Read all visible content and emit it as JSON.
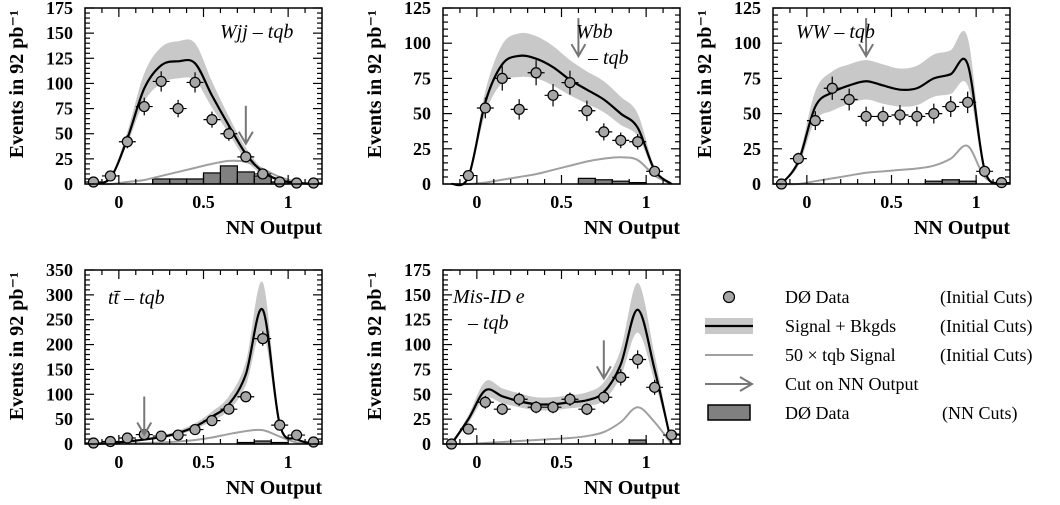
{
  "legend": {
    "items": [
      {
        "label": "DØ Data",
        "cuts": "(Initial Cuts)",
        "icon": "data-point-icon"
      },
      {
        "label": "Signal + Bkgds",
        "cuts": "(Initial Cuts)",
        "icon": "band-line-icon"
      },
      {
        "label": "50 × tqb Signal",
        "cuts": "(Initial Cuts)",
        "icon": "gray-line-icon"
      },
      {
        "label": "Cut on NN Output",
        "cuts": "",
        "icon": "arrow-icon"
      },
      {
        "label": "DØ Data",
        "cuts": "(NN Cuts)",
        "icon": "hist-box-icon"
      }
    ]
  },
  "colors": {
    "band": "#c8c8c8",
    "marker": "#a6a6a6",
    "signal": "#a0a0a0",
    "hist": "#808080",
    "arrow": "#777777"
  },
  "chart_data": [
    {
      "type": "line",
      "title": "Wjj – tqb",
      "xlabel": "NN Output",
      "ylabel": "Events in 92 pb⁻¹",
      "xlim": [
        -0.2,
        1.2
      ],
      "ylim": [
        0,
        175
      ],
      "xticks": [
        0,
        0.5,
        1
      ],
      "xtick_labels": [
        "0",
        "0.5",
        "1"
      ],
      "yticks": [
        0,
        25,
        50,
        75,
        100,
        125,
        150,
        175
      ],
      "cut": 0.75,
      "data": {
        "x": [
          -0.15,
          -0.05,
          0.05,
          0.15,
          0.25,
          0.35,
          0.45,
          0.55,
          0.65,
          0.75,
          0.85,
          0.95,
          1.05,
          1.15
        ],
        "y": [
          2,
          8,
          42,
          77,
          102,
          75,
          101,
          64,
          50,
          27,
          10,
          2,
          1,
          1
        ]
      },
      "total": {
        "x": [
          -0.15,
          -0.05,
          0.05,
          0.15,
          0.25,
          0.35,
          0.45,
          0.55,
          0.65,
          0.75,
          0.85,
          0.95,
          1.05,
          1.15
        ],
        "y": [
          1,
          6,
          45,
          95,
          118,
          122,
          120,
          88,
          58,
          30,
          12,
          4,
          1,
          0
        ]
      },
      "band": {
        "x": [
          -0.15,
          -0.05,
          0.05,
          0.15,
          0.25,
          0.35,
          0.45,
          0.55,
          0.65,
          0.75,
          0.85,
          0.95,
          1.05,
          1.15
        ],
        "low": [
          1,
          5,
          40,
          82,
          100,
          105,
          103,
          76,
          50,
          24,
          9,
          3,
          1,
          0
        ],
        "high": [
          1,
          7,
          52,
          110,
          136,
          142,
          140,
          102,
          67,
          36,
          15,
          5,
          1,
          0
        ]
      },
      "signal": {
        "x": [
          -0.15,
          -0.05,
          0.05,
          0.15,
          0.25,
          0.35,
          0.45,
          0.55,
          0.65,
          0.75,
          0.85,
          0.95,
          1.05,
          1.15
        ],
        "y": [
          0,
          0,
          2,
          4,
          8,
          12,
          16,
          20,
          23,
          22,
          15,
          7,
          2,
          0
        ]
      },
      "nncut": {
        "x": [
          0.25,
          0.35,
          0.45,
          0.55,
          0.65,
          0.75,
          0.85,
          0.95
        ],
        "y": [
          5,
          5,
          5,
          11,
          18,
          12,
          8,
          2
        ]
      }
    },
    {
      "type": "line",
      "title": "Wbb",
      "title2": "– tqb",
      "xlabel": "NN Output",
      "ylabel": "Events in 92 pb⁻¹",
      "xlim": [
        -0.2,
        1.2
      ],
      "ylim": [
        0,
        125
      ],
      "xticks": [
        0,
        0.5,
        1
      ],
      "xtick_labels": [
        "0",
        "0.5",
        "1"
      ],
      "yticks": [
        0,
        25,
        50,
        75,
        100,
        125
      ],
      "cut": 0.6,
      "data": {
        "x": [
          -0.05,
          0.05,
          0.15,
          0.25,
          0.35,
          0.45,
          0.55,
          0.65,
          0.75,
          0.85,
          0.95,
          1.05
        ],
        "y": [
          6,
          54,
          75,
          53,
          79,
          63,
          72,
          52,
          37,
          31,
          30,
          9
        ]
      },
      "total": {
        "x": [
          -0.15,
          -0.05,
          0.05,
          0.15,
          0.25,
          0.35,
          0.45,
          0.55,
          0.65,
          0.75,
          0.85,
          0.95,
          1.05,
          1.15
        ],
        "y": [
          0,
          5,
          58,
          85,
          91,
          89,
          83,
          74,
          67,
          60,
          50,
          40,
          10,
          0
        ]
      },
      "band": {
        "x": [
          -0.15,
          -0.05,
          0.05,
          0.15,
          0.25,
          0.35,
          0.45,
          0.55,
          0.65,
          0.75,
          0.85,
          0.95,
          1.05,
          1.15
        ],
        "low": [
          0,
          4,
          50,
          72,
          76,
          75,
          70,
          63,
          57,
          51,
          42,
          34,
          8,
          0
        ],
        "high": [
          0,
          6,
          66,
          99,
          107,
          105,
          98,
          88,
          80,
          73,
          62,
          50,
          12,
          0
        ]
      },
      "signal": {
        "x": [
          -0.15,
          -0.05,
          0.05,
          0.15,
          0.25,
          0.35,
          0.45,
          0.55,
          0.65,
          0.75,
          0.85,
          0.95,
          1.05,
          1.15
        ],
        "y": [
          0,
          0,
          1,
          3,
          5,
          7,
          10,
          13,
          16,
          18,
          19,
          17,
          6,
          0
        ]
      },
      "nncut": {
        "x": [
          0.65,
          0.75,
          0.85,
          0.95
        ],
        "y": [
          4,
          3,
          2,
          1
        ]
      }
    },
    {
      "type": "line",
      "title": "WW – tqb",
      "xlabel": "NN Output",
      "ylabel": "Events in 92 pb⁻¹",
      "xlim": [
        -0.2,
        1.2
      ],
      "ylim": [
        0,
        125
      ],
      "xticks": [
        0,
        0.5,
        1
      ],
      "xtick_labels": [
        "0",
        "0.5",
        "1"
      ],
      "yticks": [
        0,
        25,
        50,
        75,
        100,
        125
      ],
      "cut": 0.35,
      "data": {
        "x": [
          -0.15,
          -0.05,
          0.05,
          0.15,
          0.25,
          0.35,
          0.45,
          0.55,
          0.65,
          0.75,
          0.85,
          0.95,
          1.05,
          1.15
        ],
        "y": [
          0,
          18,
          45,
          68,
          60,
          48,
          48,
          49,
          48,
          50,
          55,
          58,
          9,
          1
        ]
      },
      "total": {
        "x": [
          -0.15,
          -0.05,
          0.05,
          0.15,
          0.25,
          0.35,
          0.45,
          0.55,
          0.65,
          0.75,
          0.85,
          0.95,
          1.05,
          1.15
        ],
        "y": [
          0,
          16,
          55,
          65,
          70,
          73,
          70,
          67,
          68,
          75,
          78,
          85,
          10,
          0
        ]
      },
      "band": {
        "x": [
          -0.15,
          -0.05,
          0.05,
          0.15,
          0.25,
          0.35,
          0.45,
          0.55,
          0.65,
          0.75,
          0.85,
          0.95,
          1.05,
          1.15
        ],
        "low": [
          0,
          13,
          45,
          52,
          57,
          60,
          57,
          55,
          56,
          62,
          64,
          70,
          8,
          0
        ],
        "high": [
          0,
          19,
          66,
          80,
          85,
          88,
          85,
          82,
          84,
          92,
          95,
          104,
          12,
          0
        ]
      },
      "signal": {
        "x": [
          -0.15,
          -0.05,
          0.05,
          0.15,
          0.25,
          0.35,
          0.45,
          0.55,
          0.65,
          0.75,
          0.85,
          0.95,
          1.05,
          1.15
        ],
        "y": [
          0,
          0,
          2,
          4,
          6,
          8,
          9,
          10,
          11,
          13,
          18,
          27,
          5,
          0
        ]
      },
      "nncut": {
        "x": [
          0.75,
          0.85,
          0.95
        ],
        "y": [
          2,
          3,
          2
        ]
      }
    },
    {
      "type": "line",
      "title": "tt̄ – tqb",
      "xlabel": "NN Output",
      "ylabel": "Events in 92 pb⁻¹",
      "xlim": [
        -0.2,
        1.2
      ],
      "ylim": [
        0,
        350
      ],
      "xticks": [
        0,
        0.5,
        1
      ],
      "xtick_labels": [
        "0",
        "0.5",
        "1"
      ],
      "yticks": [
        0,
        50,
        100,
        150,
        200,
        250,
        300,
        350
      ],
      "cut": 0.15,
      "data": {
        "x": [
          -0.15,
          -0.05,
          0.05,
          0.15,
          0.25,
          0.35,
          0.45,
          0.55,
          0.65,
          0.75,
          0.85,
          0.95,
          1.05,
          1.15
        ],
        "y": [
          2,
          5,
          12,
          19,
          16,
          18,
          29,
          47,
          70,
          95,
          212,
          38,
          18,
          4
        ]
      },
      "total": {
        "x": [
          -0.15,
          -0.05,
          0.05,
          0.15,
          0.25,
          0.35,
          0.45,
          0.55,
          0.65,
          0.75,
          0.85,
          0.95,
          1.05,
          1.15
        ],
        "y": [
          0,
          2,
          5,
          9,
          14,
          22,
          35,
          55,
          80,
          140,
          270,
          40,
          10,
          0
        ]
      },
      "band": {
        "x": [
          -0.15,
          -0.05,
          0.05,
          0.15,
          0.25,
          0.35,
          0.45,
          0.55,
          0.65,
          0.75,
          0.85,
          0.95,
          1.05,
          1.15
        ],
        "low": [
          0,
          2,
          4,
          7,
          11,
          18,
          30,
          46,
          68,
          118,
          225,
          33,
          8,
          0
        ],
        "high": [
          0,
          3,
          6,
          11,
          17,
          27,
          42,
          65,
          96,
          165,
          325,
          48,
          12,
          0
        ]
      },
      "signal": {
        "x": [
          -0.15,
          -0.05,
          0.05,
          0.15,
          0.25,
          0.35,
          0.45,
          0.55,
          0.65,
          0.75,
          0.85,
          0.95,
          1.05,
          1.15
        ],
        "y": [
          0,
          0,
          1,
          2,
          3,
          5,
          8,
          13,
          20,
          26,
          28,
          15,
          3,
          0
        ]
      },
      "nncut": {
        "x": [
          0.75,
          0.85,
          0.95
        ],
        "y": [
          3,
          6,
          3
        ]
      }
    },
    {
      "type": "line",
      "title": "Mis-ID e",
      "title2": "– tqb",
      "xlabel": "NN Output",
      "ylabel": "Events in 92 pb⁻¹",
      "xlim": [
        -0.2,
        1.2
      ],
      "ylim": [
        0,
        175
      ],
      "xticks": [
        0,
        0.5,
        1
      ],
      "xtick_labels": [
        "0",
        "0.5",
        "1"
      ],
      "yticks": [
        0,
        25,
        50,
        75,
        100,
        125,
        150,
        175
      ],
      "cut": 0.75,
      "data": {
        "x": [
          -0.15,
          -0.05,
          0.05,
          0.15,
          0.25,
          0.35,
          0.45,
          0.55,
          0.65,
          0.75,
          0.85,
          0.95,
          1.05,
          1.15
        ],
        "y": [
          0,
          15,
          42,
          35,
          45,
          37,
          37,
          45,
          35,
          47,
          67,
          85,
          57,
          9
        ]
      },
      "total": {
        "x": [
          -0.15,
          -0.05,
          0.05,
          0.15,
          0.25,
          0.35,
          0.45,
          0.55,
          0.65,
          0.75,
          0.85,
          0.95,
          1.05,
          1.15
        ],
        "y": [
          0,
          25,
          54,
          48,
          43,
          40,
          40,
          42,
          44,
          52,
          80,
          135,
          75,
          0
        ]
      },
      "band": {
        "x": [
          -0.15,
          -0.05,
          0.05,
          0.15,
          0.25,
          0.35,
          0.45,
          0.55,
          0.65,
          0.75,
          0.85,
          0.95,
          1.05,
          1.15
        ],
        "low": [
          0,
          21,
          46,
          41,
          37,
          34,
          34,
          36,
          38,
          44,
          68,
          112,
          63,
          0
        ],
        "high": [
          0,
          29,
          63,
          56,
          51,
          47,
          47,
          49,
          52,
          62,
          95,
          162,
          90,
          0
        ]
      },
      "signal": {
        "x": [
          -0.15,
          -0.05,
          0.05,
          0.15,
          0.25,
          0.35,
          0.45,
          0.55,
          0.65,
          0.75,
          0.85,
          0.95,
          1.05,
          1.15
        ],
        "y": [
          0,
          0,
          1,
          2,
          3,
          4,
          5,
          6,
          8,
          12,
          22,
          37,
          22,
          0
        ]
      },
      "nncut": {
        "x": [
          0.95
        ],
        "y": [
          4
        ]
      }
    }
  ]
}
